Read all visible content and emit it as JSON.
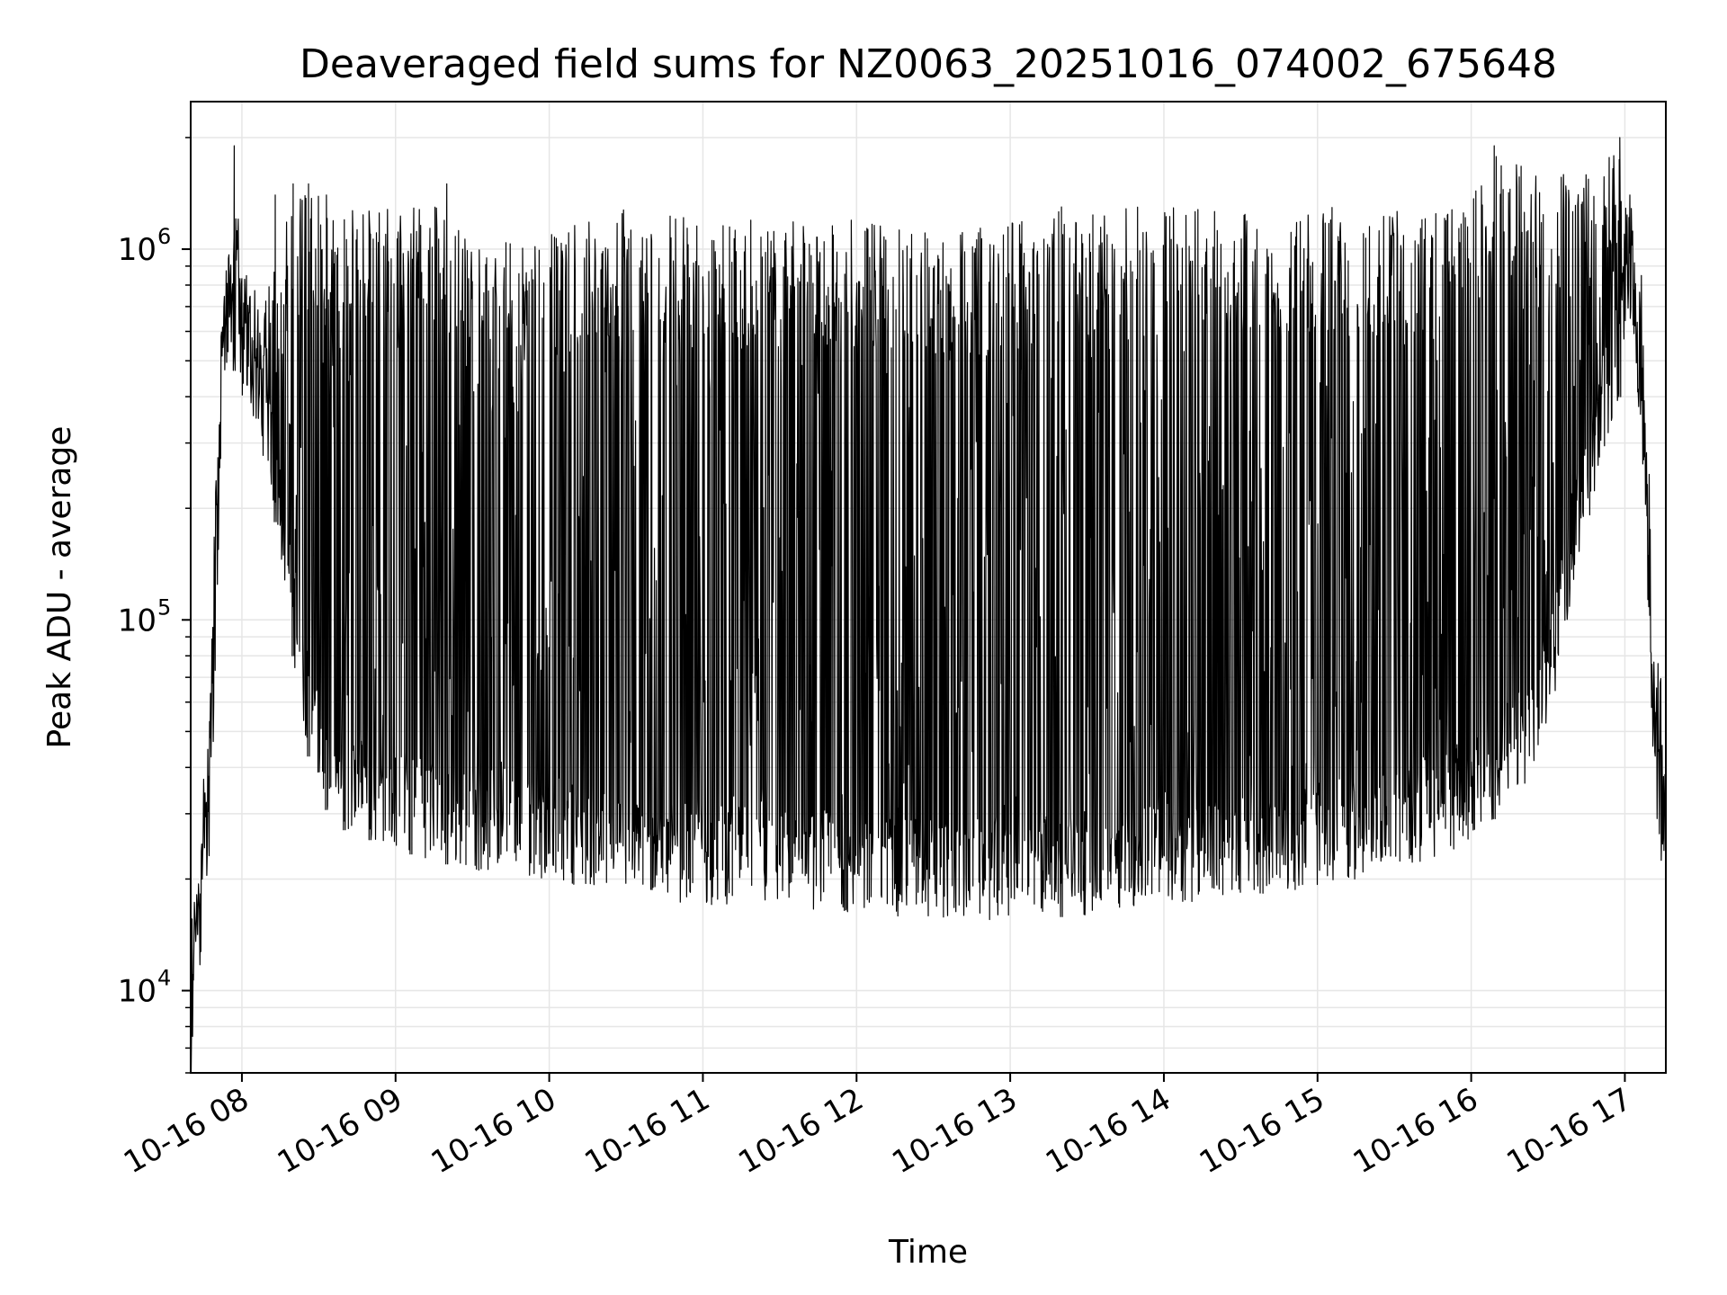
{
  "chart_data": {
    "type": "line",
    "title": "Deaveraged field sums for NZ0063_20251016_074002_675648",
    "xlabel": "Time",
    "ylabel": "Peak ADU - average",
    "yscale": "log",
    "ylim": [
      6000,
      2500000
    ],
    "xlim": [
      "2025-10-16 07:40",
      "2025-10-16 17:16"
    ],
    "grid": true,
    "line_color": "#000000",
    "grid_color": "#e6e6e6",
    "x_ticks": [
      {
        "time": "2025-10-16 08:00",
        "label": "10-16 08"
      },
      {
        "time": "2025-10-16 09:00",
        "label": "10-16 09"
      },
      {
        "time": "2025-10-16 10:00",
        "label": "10-16 10"
      },
      {
        "time": "2025-10-16 11:00",
        "label": "10-16 11"
      },
      {
        "time": "2025-10-16 12:00",
        "label": "10-16 12"
      },
      {
        "time": "2025-10-16 13:00",
        "label": "10-16 13"
      },
      {
        "time": "2025-10-16 14:00",
        "label": "10-16 14"
      },
      {
        "time": "2025-10-16 15:00",
        "label": "10-16 15"
      },
      {
        "time": "2025-10-16 16:00",
        "label": "10-16 16"
      },
      {
        "time": "2025-10-16 17:00",
        "label": "10-16 17"
      }
    ],
    "y_ticks": [
      {
        "value": 10000,
        "base": "10",
        "exp": "4"
      },
      {
        "value": 100000,
        "base": "10",
        "exp": "5"
      },
      {
        "value": 1000000,
        "base": "10",
        "exp": "6"
      }
    ],
    "series": [
      {
        "envelope_upper": [
          [
            "2025-10-16 07:40",
            13000
          ],
          [
            "2025-10-16 07:45",
            30000
          ],
          [
            "2025-10-16 07:48",
            60000
          ],
          [
            "2025-10-16 07:50",
            180000
          ],
          [
            "2025-10-16 07:52",
            700000
          ],
          [
            "2025-10-16 07:55",
            1300000
          ],
          [
            "2025-10-16 07:57",
            1900000
          ],
          [
            "2025-10-16 08:00",
            900000
          ],
          [
            "2025-10-16 08:10",
            800000
          ],
          [
            "2025-10-16 08:20",
            1400000
          ],
          [
            "2025-10-16 08:30",
            1400000
          ],
          [
            "2025-10-16 08:45",
            1300000
          ],
          [
            "2025-10-16 09:00",
            1300000
          ],
          [
            "2025-10-16 09:15",
            1400000
          ],
          [
            "2025-10-16 09:30",
            1000000
          ],
          [
            "2025-10-16 10:00",
            1100000
          ],
          [
            "2025-10-16 10:30",
            1300000
          ],
          [
            "2025-10-16 11:00",
            1200000
          ],
          [
            "2025-10-16 11:30",
            1200000
          ],
          [
            "2025-10-16 12:00",
            1200000
          ],
          [
            "2025-10-16 12:30",
            1100000
          ],
          [
            "2025-10-16 13:00",
            1200000
          ],
          [
            "2025-10-16 13:30",
            1300000
          ],
          [
            "2025-10-16 14:00",
            1300000
          ],
          [
            "2025-10-16 14:30",
            1300000
          ],
          [
            "2025-10-16 15:00",
            1300000
          ],
          [
            "2025-10-16 15:30",
            1300000
          ],
          [
            "2025-10-16 16:00",
            1400000
          ],
          [
            "2025-10-16 16:10",
            1900000
          ],
          [
            "2025-10-16 16:30",
            1600000
          ],
          [
            "2025-10-16 16:50",
            1600000
          ],
          [
            "2025-10-16 16:58",
            2000000
          ],
          [
            "2025-10-16 17:03",
            1300000
          ],
          [
            "2025-10-16 17:07",
            800000
          ],
          [
            "2025-10-16 17:10",
            200000
          ],
          [
            "2025-10-16 17:12",
            60000
          ],
          [
            "2025-10-16 17:16",
            40000
          ]
        ],
        "envelope_lower": [
          [
            "2025-10-16 07:40",
            8000
          ],
          [
            "2025-10-16 07:45",
            20000
          ],
          [
            "2025-10-16 07:48",
            45000
          ],
          [
            "2025-10-16 07:50",
            150000
          ],
          [
            "2025-10-16 07:53",
            500000
          ],
          [
            "2025-10-16 08:00",
            450000
          ],
          [
            "2025-10-16 08:10",
            250000
          ],
          [
            "2025-10-16 08:15",
            150000
          ],
          [
            "2025-10-16 08:20",
            80000
          ],
          [
            "2025-10-16 08:25",
            45000
          ],
          [
            "2025-10-16 08:35",
            28000
          ],
          [
            "2025-10-16 09:00",
            24000
          ],
          [
            "2025-10-16 09:30",
            21000
          ],
          [
            "2025-10-16 10:00",
            20000
          ],
          [
            "2025-10-16 10:30",
            18000
          ],
          [
            "2025-10-16 11:00",
            17000
          ],
          [
            "2025-10-16 11:30",
            16500
          ],
          [
            "2025-10-16 12:00",
            16000
          ],
          [
            "2025-10-16 12:30",
            15500
          ],
          [
            "2025-10-16 13:00",
            15500
          ],
          [
            "2025-10-16 13:30",
            16000
          ],
          [
            "2025-10-16 14:00",
            17000
          ],
          [
            "2025-10-16 14:30",
            18000
          ],
          [
            "2025-10-16 15:00",
            19000
          ],
          [
            "2025-10-16 15:30",
            21000
          ],
          [
            "2025-10-16 16:00",
            25000
          ],
          [
            "2025-10-16 16:20",
            35000
          ],
          [
            "2025-10-16 16:30",
            50000
          ],
          [
            "2025-10-16 16:40",
            120000
          ],
          [
            "2025-10-16 16:50",
            250000
          ],
          [
            "2025-10-16 16:58",
            400000
          ],
          [
            "2025-10-16 17:03",
            600000
          ],
          [
            "2025-10-16 17:08",
            200000
          ],
          [
            "2025-10-16 17:10",
            45000
          ],
          [
            "2025-10-16 17:14",
            40000
          ],
          [
            "2025-10-16 17:16",
            25000
          ]
        ],
        "spikes": [
          [
            "2025-10-16 07:57",
            1900000
          ],
          [
            "2025-10-16 08:13",
            1400000
          ],
          [
            "2025-10-16 08:20",
            1500000
          ],
          [
            "2025-10-16 08:26",
            1500000
          ],
          [
            "2025-10-16 08:33",
            1400000
          ],
          [
            "2025-10-16 08:40",
            1200000
          ],
          [
            "2025-10-16 08:50",
            1100000
          ],
          [
            "2025-10-16 09:06",
            1100000
          ],
          [
            "2025-10-16 09:20",
            1500000
          ],
          [
            "2025-10-16 13:20",
            1300000
          ],
          [
            "2025-10-16 16:09",
            1900000
          ],
          [
            "2025-10-16 16:58",
            2000000
          ]
        ]
      }
    ]
  }
}
